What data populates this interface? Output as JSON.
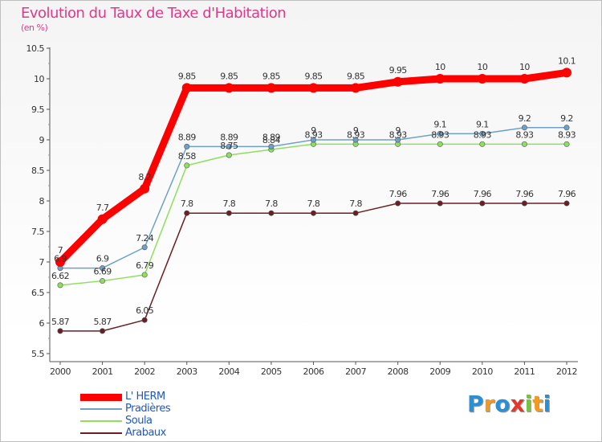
{
  "header": {
    "title": "Evolution du Taux de Taxe d'Habitation",
    "subtitle": "(en %)"
  },
  "logo": {
    "text": "Proxiti",
    "letters": [
      {
        "ch": "P",
        "color": "#2b8fd6"
      },
      {
        "ch": "r",
        "color": "#f39a1e"
      },
      {
        "ch": "o",
        "color": "#2b8fd6"
      },
      {
        "ch": "x",
        "color": "#e8362a"
      },
      {
        "ch": "i",
        "color": "#7cc242"
      },
      {
        "ch": "t",
        "color": "#f39a1e"
      },
      {
        "ch": "i",
        "color": "#2b8fd6"
      }
    ]
  },
  "chart_data": {
    "type": "line",
    "title": "Evolution du Taux de Taxe d'Habitation",
    "ylabel": "(en %)",
    "x": [
      "2000",
      "2001",
      "2002",
      "2003",
      "2004",
      "2005",
      "2006",
      "2007",
      "2008",
      "2009",
      "2010",
      "2011",
      "2012"
    ],
    "ylim": [
      5.5,
      10.5
    ],
    "yticks": [
      "5.5",
      "6",
      "6.5",
      "7",
      "7.5",
      "8",
      "8.5",
      "9",
      "9.5",
      "10",
      "10.5"
    ],
    "grid": false,
    "legend_position": "bottom-left",
    "series": [
      {
        "name": "Arabaux",
        "color": "#6b1f24",
        "values": [
          5.87,
          5.87,
          6.05,
          7.8,
          7.8,
          7.8,
          7.8,
          7.8,
          7.96,
          7.96,
          7.96,
          7.96,
          7.96
        ],
        "labels": [
          "5.87",
          "5.87",
          "6.05",
          "7.8",
          "7.8",
          "7.8",
          "7.8",
          "7.8",
          "7.96",
          "7.96",
          "7.96",
          "7.96",
          "7.96"
        ]
      },
      {
        "name": "Soula",
        "color": "#8fdf5f",
        "values": [
          6.62,
          6.69,
          6.79,
          8.58,
          8.75,
          8.84,
          8.93,
          8.93,
          8.93,
          8.93,
          8.93,
          8.93,
          8.93
        ],
        "labels": [
          "6.62",
          "6.69",
          "6.79",
          "8.58",
          "8.75",
          "8.84",
          "8.93",
          "8.93",
          "8.93",
          "8.93",
          "8.93",
          "8.93",
          "8.93"
        ]
      },
      {
        "name": "Pradières",
        "color": "#6ea0c8",
        "values": [
          6.9,
          6.9,
          7.24,
          8.89,
          8.89,
          8.89,
          9.0,
          9.0,
          9.0,
          9.1,
          9.1,
          9.2,
          9.2
        ],
        "labels": [
          "6.9",
          "6.9",
          "7.24",
          "8.89",
          "8.89",
          "8.89",
          "9",
          "9",
          "9",
          "9.1",
          "9.1",
          "9.2",
          "9.2"
        ]
      },
      {
        "name": "L' HERM",
        "color": "#ff0000",
        "values": [
          7.0,
          7.7,
          8.2,
          9.85,
          9.85,
          9.85,
          9.85,
          9.85,
          9.95,
          10,
          10,
          10,
          10.1
        ],
        "labels": [
          "7",
          "7.7",
          "8.2",
          "9.85",
          "9.85",
          "9.85",
          "9.85",
          "9.85",
          "9.95",
          "10",
          "10",
          "10",
          "10.1"
        ]
      }
    ]
  },
  "legend": {
    "items": [
      {
        "label": "L' HERM",
        "color": "#ff0000",
        "thick": true
      },
      {
        "label": "Pradières",
        "color": "#6ea0c8",
        "thick": false
      },
      {
        "label": "Soula",
        "color": "#8fdf5f",
        "thick": false
      },
      {
        "label": "Arabaux",
        "color": "#6b1f24",
        "thick": false
      }
    ]
  }
}
